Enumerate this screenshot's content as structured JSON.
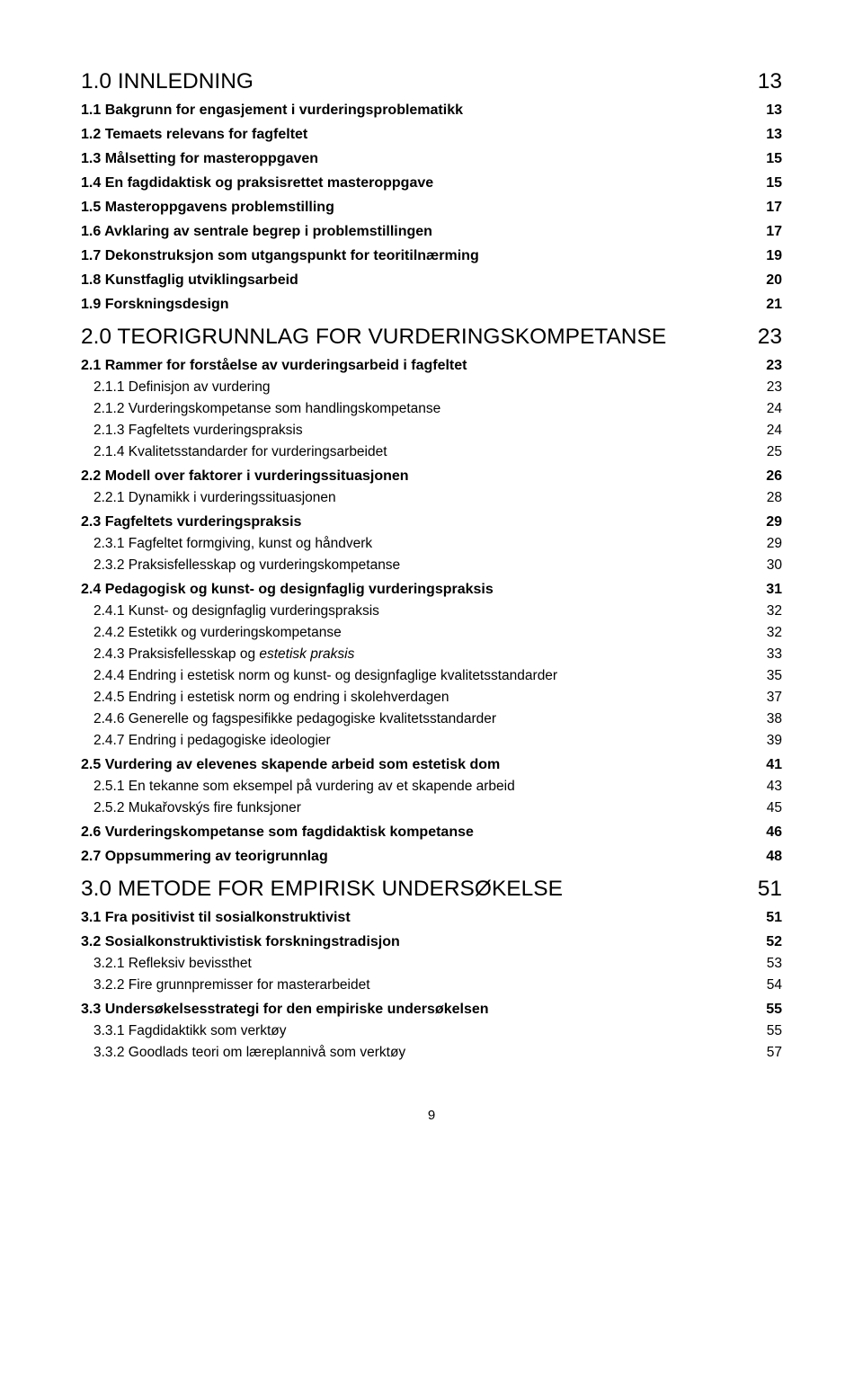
{
  "pageNumber": "9",
  "colors": {
    "text": "#000000",
    "background": "#ffffff"
  },
  "fontSizes": {
    "chapter": 24.5,
    "section": 16,
    "sub": 15.5,
    "pageNumber": 15
  },
  "toc": [
    {
      "level": "chapter",
      "title": "1.0 INNLEDNING",
      "page": "13"
    },
    {
      "level": "section",
      "title": "1.1 Bakgrunn for engasjement i vurderingsproblematikk",
      "page": "13"
    },
    {
      "level": "section",
      "title": "1.2 Temaets relevans for fagfeltet",
      "page": "13"
    },
    {
      "level": "section",
      "title": "1.3 Målsetting for masteroppgaven",
      "page": "15"
    },
    {
      "level": "section",
      "title": "1.4 En fagdidaktisk og praksisrettet masteroppgave",
      "page": "15"
    },
    {
      "level": "section",
      "title": "1.5 Masteroppgavens problemstilling",
      "page": "17"
    },
    {
      "level": "section",
      "title": "1.6 Avklaring av sentrale begrep i problemstillingen",
      "page": "17"
    },
    {
      "level": "section",
      "title": "1.7 Dekonstruksjon som utgangspunkt for teoritilnærming",
      "page": "19"
    },
    {
      "level": "section",
      "title": "1.8 Kunstfaglig utviklingsarbeid",
      "page": "20"
    },
    {
      "level": "section",
      "title": "1.9 Forskningsdesign",
      "page": "21"
    },
    {
      "level": "chapter",
      "title": "2.0 TEORIGRUNNLAG FOR VURDERINGSKOMPETANSE",
      "page": "23"
    },
    {
      "level": "section",
      "title": "2.1 Rammer for forståelse av vurderingsarbeid i fagfeltet",
      "page": "23"
    },
    {
      "level": "sub",
      "title": "2.1.1 Definisjon av vurdering",
      "page": "23"
    },
    {
      "level": "sub",
      "title": "2.1.2 Vurderingskompetanse som handlingskompetanse",
      "page": "24"
    },
    {
      "level": "sub",
      "title": "2.1.3 Fagfeltets vurderingspraksis",
      "page": "24"
    },
    {
      "level": "sub",
      "title": "2.1.4 Kvalitetsstandarder for vurderingsarbeidet",
      "page": "25"
    },
    {
      "level": "section",
      "title": "2.2 Modell over faktorer i vurderingssituasjonen",
      "page": "26"
    },
    {
      "level": "sub",
      "title": "2.2.1 Dynamikk i vurderingssituasjonen",
      "page": "28"
    },
    {
      "level": "section",
      "title": "2.3 Fagfeltets vurderingspraksis",
      "page": "29"
    },
    {
      "level": "sub",
      "title": "2.3.1 Fagfeltet formgiving, kunst og håndverk",
      "page": "29"
    },
    {
      "level": "sub",
      "title": "2.3.2 Praksisfellesskap og vurderingskompetanse",
      "page": "30"
    },
    {
      "level": "section",
      "title": "2.4 Pedagogisk og kunst- og designfaglig vurderingspraksis",
      "page": "31"
    },
    {
      "level": "sub",
      "title": "2.4.1 Kunst- og designfaglig vurderingspraksis",
      "page": "32"
    },
    {
      "level": "sub",
      "title": "2.4.2 Estetikk og vurderingskompetanse",
      "page": "32"
    },
    {
      "level": "sub",
      "titlePrefix": "2.4.3 Praksisfellesskap og ",
      "titleItalic": "estetisk praksis",
      "page": "33"
    },
    {
      "level": "sub",
      "title": "2.4.4 Endring i estetisk norm og kunst- og designfaglige kvalitetsstandarder",
      "page": "35"
    },
    {
      "level": "sub",
      "title": "2.4.5 Endring i estetisk norm og endring i skolehverdagen",
      "page": "37"
    },
    {
      "level": "sub",
      "title": "2.4.6 Generelle og fagspesifikke pedagogiske kvalitetsstandarder",
      "page": "38"
    },
    {
      "level": "sub",
      "title": "2.4.7 Endring i pedagogiske ideologier",
      "page": "39"
    },
    {
      "level": "section",
      "title": "2.5 Vurdering av elevenes skapende arbeid som estetisk dom",
      "page": "41"
    },
    {
      "level": "sub",
      "title": "2.5.1 En tekanne som eksempel på vurdering av et skapende arbeid",
      "page": "43"
    },
    {
      "level": "sub",
      "title": "2.5.2 Mukařovskýs fire funksjoner",
      "page": "45"
    },
    {
      "level": "section",
      "title": "2.6 Vurderingskompetanse som fagdidaktisk kompetanse",
      "page": "46"
    },
    {
      "level": "section",
      "title": "2.7 Oppsummering av teorigrunnlag",
      "page": "48"
    },
    {
      "level": "chapter",
      "title": "3.0 METODE FOR EMPIRISK UNDERSØKELSE",
      "page": "51"
    },
    {
      "level": "section",
      "title": "3.1 Fra positivist til sosialkonstruktivist",
      "page": "51"
    },
    {
      "level": "section",
      "title": "3.2 Sosialkonstruktivistisk forskningstradisjon",
      "page": "52"
    },
    {
      "level": "sub",
      "title": "3.2.1 Refleksiv bevissthet",
      "page": "53"
    },
    {
      "level": "sub",
      "title": "3.2.2 Fire grunnpremisser for masterarbeidet",
      "page": "54"
    },
    {
      "level": "section",
      "title": "3.3 Undersøkelsesstrategi for den empiriske undersøkelsen",
      "page": "55"
    },
    {
      "level": "sub",
      "title": "3.3.1 Fagdidaktikk som verktøy",
      "page": "55"
    },
    {
      "level": "sub",
      "title": "3.3.2 Goodlads teori om læreplannivå som verktøy",
      "page": "57"
    }
  ]
}
